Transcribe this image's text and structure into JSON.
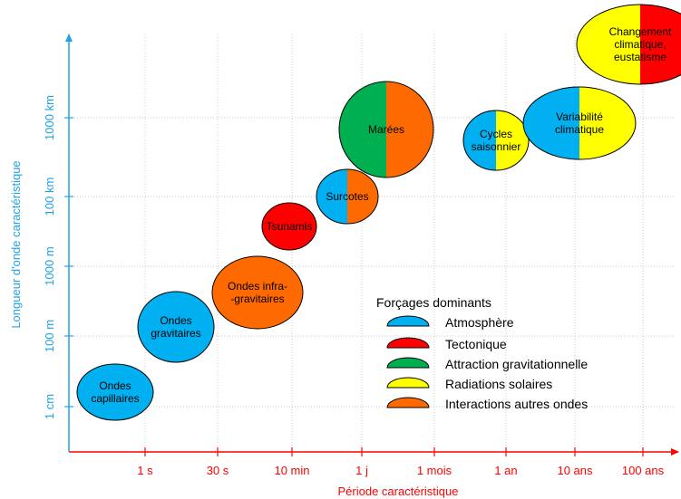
{
  "chart_data": {
    "type": "scatter",
    "title": "",
    "xlabel": "Période caractéristique",
    "ylabel": "Longueur d'onde caractéristique",
    "x_ticks": [
      "1 s",
      "30 s",
      "10 min",
      "1 j",
      "1 mois",
      "1 an",
      "10 ans",
      "100 ans"
    ],
    "y_ticks": [
      "1 cm",
      "100 m",
      "1000 m",
      "100 km",
      "1000 km"
    ],
    "grid": true,
    "legend": {
      "title": "Forçages dominants",
      "position": "bottom-right",
      "items": [
        {
          "label": "Atmosphère",
          "color": "#00b0f0"
        },
        {
          "label": "Tectonique",
          "color": "#ff0000"
        },
        {
          "label": "Attraction gravitationnelle",
          "color": "#00b050"
        },
        {
          "label": "Radiations solaires",
          "color": "#ffff00"
        },
        {
          "label": "Interactions autres ondes",
          "color": "#ff6a00"
        }
      ]
    },
    "bubbles": [
      {
        "label": "Ondes\ncapillaires",
        "x": -0.5,
        "y": -1.8,
        "colors": [
          "#00b0f0"
        ]
      },
      {
        "label": "Ondes\ngravitaires",
        "x": 1.5,
        "y": 0.5,
        "colors": [
          "#00b0f0"
        ]
      },
      {
        "label": "Ondes infra-\n-gravitaires",
        "x": 3.5,
        "y": 1.5,
        "colors": [
          "#ff6a00"
        ]
      },
      {
        "label": "Tsunamis",
        "x": 4.95,
        "y": 2.45,
        "colors": [
          "#ff0000"
        ]
      },
      {
        "label": "Surcotes",
        "x": 5.75,
        "y": 3.0,
        "colors": [
          "#00b0f0",
          "#ff6a00"
        ]
      },
      {
        "label": "Marées",
        "x": 6.3,
        "y": 3.8,
        "colors": [
          "#00b050",
          "#ff6a00"
        ]
      },
      {
        "label": "Cycles\nsaisonnier",
        "x": 7.85,
        "y": 3.75,
        "colors": [
          "#00b0f0",
          "#ffff00"
        ]
      },
      {
        "label": "Variabilité\nclimatique",
        "x": 9.1,
        "y": 4.1,
        "colors": [
          "#00b0f0",
          "#ffff00"
        ]
      },
      {
        "label": "Changement\nclimatique,\neustatisme",
        "x": 9.9,
        "y": 5.15,
        "colors": [
          "#ffff00",
          "#ff0000"
        ]
      }
    ]
  }
}
